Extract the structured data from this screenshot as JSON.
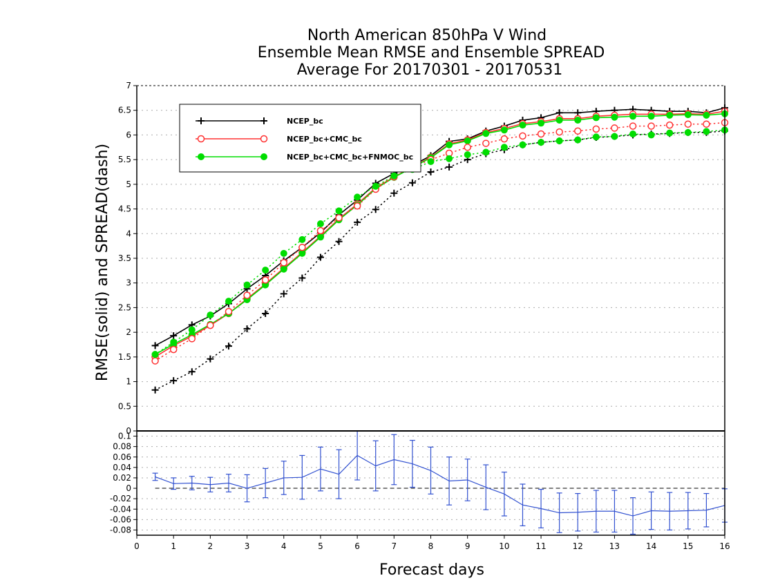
{
  "chart_data": {
    "type": "line",
    "title": [
      "North American 850hPa V Wind",
      "Ensemble Mean RMSE and Ensemble SPREAD",
      "Average For 20170301 - 20170531"
    ],
    "xlabel": "Forecast days",
    "ylabel": "RMSE(solid) and SPREAD(dash)",
    "xlim": [
      0,
      16
    ],
    "ylim": [
      0,
      7
    ],
    "diff_ylim": [
      -0.09,
      0.11
    ],
    "grid": true,
    "legend_position": "top-left",
    "colors": {
      "ncep": "#000000",
      "cmc": "#ff3030",
      "fnmoc": "#00dd00",
      "diff": "#3050d0"
    },
    "xticks": [
      "0",
      "1",
      "2",
      "3",
      "4",
      "5",
      "6",
      "7",
      "8",
      "9",
      "10",
      "11",
      "12",
      "13",
      "14",
      "15",
      "16"
    ],
    "yticks": [
      "0",
      "0.5",
      "1",
      "1.5",
      "2",
      "2.5",
      "3",
      "3.5",
      "4",
      "4.5",
      "5",
      "5.5",
      "6",
      "6.5",
      "7"
    ],
    "diff_yticks": [
      "-0.08",
      "-0.06",
      "-0.04",
      "-0.02",
      "0",
      "0.02",
      "0.04",
      "0.06",
      "0.08",
      "0.1"
    ],
    "x": [
      0.5,
      1,
      1.5,
      2,
      2.5,
      3,
      3.5,
      4,
      4.5,
      5,
      5.5,
      6,
      6.5,
      7,
      7.5,
      8,
      8.5,
      9,
      9.5,
      10,
      10.5,
      11,
      11.5,
      12,
      12.5,
      13,
      13.5,
      14,
      14.5,
      15,
      15.5,
      16
    ],
    "series": [
      {
        "name": "NCEP_bc",
        "kind": "rmse",
        "color": "#000000",
        "marker": "plus",
        "values": [
          1.73,
          1.93,
          2.15,
          2.33,
          2.58,
          2.88,
          3.15,
          3.45,
          3.72,
          4.02,
          4.38,
          4.68,
          5.02,
          5.22,
          5.38,
          5.58,
          5.87,
          5.92,
          6.08,
          6.18,
          6.3,
          6.35,
          6.45,
          6.45,
          6.48,
          6.5,
          6.52,
          6.5,
          6.48,
          6.48,
          6.45,
          6.55
        ]
      },
      {
        "name": "NCEP_bc+CMC_bc",
        "kind": "rmse",
        "color": "#ff3030",
        "marker": "circle-open",
        "values": [
          1.5,
          1.73,
          1.92,
          2.14,
          2.38,
          2.68,
          2.98,
          3.3,
          3.62,
          3.95,
          4.3,
          4.6,
          4.93,
          5.15,
          5.35,
          5.55,
          5.82,
          5.9,
          6.05,
          6.13,
          6.23,
          6.27,
          6.33,
          6.33,
          6.38,
          6.4,
          6.42,
          6.42,
          6.42,
          6.43,
          6.42,
          6.48
        ]
      },
      {
        "name": "NCEP_bc+CMC_bc+FNMOC_bc",
        "kind": "rmse",
        "color": "#00dd00",
        "marker": "circle-filled",
        "values": [
          1.55,
          1.76,
          1.95,
          2.16,
          2.38,
          2.66,
          2.96,
          3.28,
          3.6,
          3.93,
          4.28,
          4.58,
          4.91,
          5.14,
          5.34,
          5.54,
          5.8,
          5.88,
          6.03,
          6.1,
          6.2,
          6.24,
          6.3,
          6.3,
          6.35,
          6.36,
          6.38,
          6.38,
          6.4,
          6.41,
          6.4,
          6.43
        ]
      },
      {
        "name": "NCEP_bc",
        "kind": "spread",
        "color": "#000000",
        "marker": "plus",
        "values": [
          0.83,
          1.02,
          1.2,
          1.46,
          1.72,
          2.07,
          2.38,
          2.78,
          3.1,
          3.52,
          3.84,
          4.23,
          4.49,
          4.82,
          5.03,
          5.25,
          5.35,
          5.5,
          5.62,
          5.7,
          5.8,
          5.85,
          5.88,
          5.9,
          5.95,
          5.97,
          6.0,
          6.02,
          6.03,
          6.05,
          6.05,
          6.08
        ]
      },
      {
        "name": "NCEP_bc+CMC_bc",
        "kind": "spread",
        "color": "#ff3030",
        "marker": "circle-open",
        "values": [
          1.42,
          1.65,
          1.87,
          2.14,
          2.42,
          2.75,
          3.06,
          3.41,
          3.72,
          4.06,
          4.32,
          4.56,
          4.9,
          5.15,
          5.35,
          5.5,
          5.63,
          5.75,
          5.83,
          5.92,
          5.98,
          6.02,
          6.06,
          6.08,
          6.12,
          6.14,
          6.18,
          6.18,
          6.2,
          6.22,
          6.22,
          6.25
        ]
      },
      {
        "name": "NCEP_bc+CMC_bc+FNMOC_bc",
        "kind": "spread",
        "color": "#00dd00",
        "marker": "circle-filled",
        "values": [
          1.55,
          1.8,
          2.05,
          2.35,
          2.63,
          2.96,
          3.26,
          3.6,
          3.88,
          4.2,
          4.46,
          4.74,
          4.96,
          5.17,
          5.3,
          5.46,
          5.52,
          5.6,
          5.65,
          5.75,
          5.8,
          5.85,
          5.88,
          5.9,
          5.96,
          5.97,
          6.02,
          6.0,
          6.04,
          6.05,
          6.07,
          6.1
        ]
      }
    ],
    "difference": {
      "color": "#3050d0",
      "values": [
        0.022,
        0.009,
        0.01,
        0.007,
        0.01,
        0.0,
        0.01,
        0.02,
        0.021,
        0.037,
        0.027,
        0.063,
        0.043,
        0.055,
        0.047,
        0.034,
        0.014,
        0.016,
        0.002,
        -0.011,
        -0.032,
        -0.039,
        -0.047,
        -0.046,
        -0.044,
        -0.044,
        -0.053,
        -0.043,
        -0.044,
        -0.043,
        -0.042,
        -0.033
      ],
      "error": [
        0.007,
        0.011,
        0.013,
        0.014,
        0.017,
        0.026,
        0.028,
        0.032,
        0.042,
        0.042,
        0.047,
        0.047,
        0.048,
        0.048,
        0.045,
        0.045,
        0.046,
        0.04,
        0.043,
        0.042,
        0.04,
        0.037,
        0.038,
        0.036,
        0.04,
        0.04,
        0.035,
        0.036,
        0.036,
        0.035,
        0.032,
        0.032
      ]
    }
  }
}
